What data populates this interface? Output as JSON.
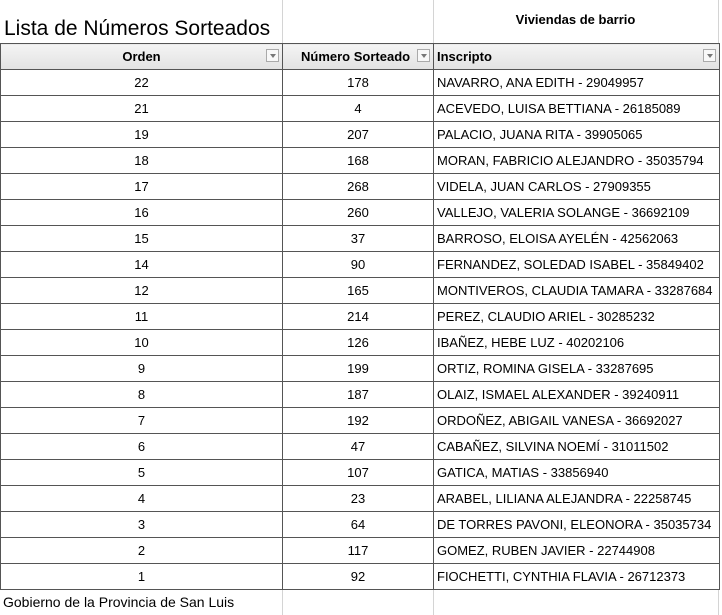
{
  "title": "Lista de Números Sorteados",
  "subtitle": "Viviendas de barrio",
  "columns": [
    "Orden",
    "Número Sorteado",
    "Inscripto"
  ],
  "rows": [
    [
      "22",
      "178",
      "NAVARRO, ANA EDITH - 29049957"
    ],
    [
      "21",
      "4",
      "ACEVEDO, LUISA BETTIANA - 26185089"
    ],
    [
      "19",
      "207",
      "PALACIO, JUANA RITA - 39905065"
    ],
    [
      "18",
      "168",
      "MORAN, FABRICIO ALEJANDRO - 35035794"
    ],
    [
      "17",
      "268",
      "VIDELA, JUAN CARLOS - 27909355"
    ],
    [
      "16",
      "260",
      "VALLEJO, VALERIA SOLANGE - 36692109"
    ],
    [
      "15",
      "37",
      "BARROSO, ELOISA AYELÉN - 42562063"
    ],
    [
      "14",
      "90",
      "FERNANDEZ, SOLEDAD ISABEL - 35849402"
    ],
    [
      "12",
      "165",
      "MONTIVEROS, CLAUDIA TAMARA - 33287684"
    ],
    [
      "11",
      "214",
      "PEREZ, CLAUDIO ARIEL - 30285232"
    ],
    [
      "10",
      "126",
      "IBAÑEZ, HEBE LUZ - 40202106"
    ],
    [
      "9",
      "199",
      "ORTIZ, ROMINA GISELA - 33287695"
    ],
    [
      "8",
      "187",
      "OLAIZ, ISMAEL ALEXANDER - 39240911"
    ],
    [
      "7",
      "192",
      "ORDOÑEZ, ABIGAIL VANESA - 36692027"
    ],
    [
      "6",
      "47",
      "CABAÑEZ, SILVINA NOEMÍ - 31011502"
    ],
    [
      "5",
      "107",
      "GATICA, MATIAS - 33856940"
    ],
    [
      "4",
      "23",
      "ARABEL, LILIANA ALEJANDRA - 22258745"
    ],
    [
      "3",
      "64",
      "DE TORRES PAVONI, ELEONORA - 35035734"
    ],
    [
      "2",
      "117",
      "GOMEZ, RUBEN JAVIER - 22744908"
    ],
    [
      "1",
      "92",
      "FIOCHETTI, CYNTHIA FLAVIA - 26712373"
    ]
  ],
  "footer": "Gobierno de la Provincia de San Luis"
}
